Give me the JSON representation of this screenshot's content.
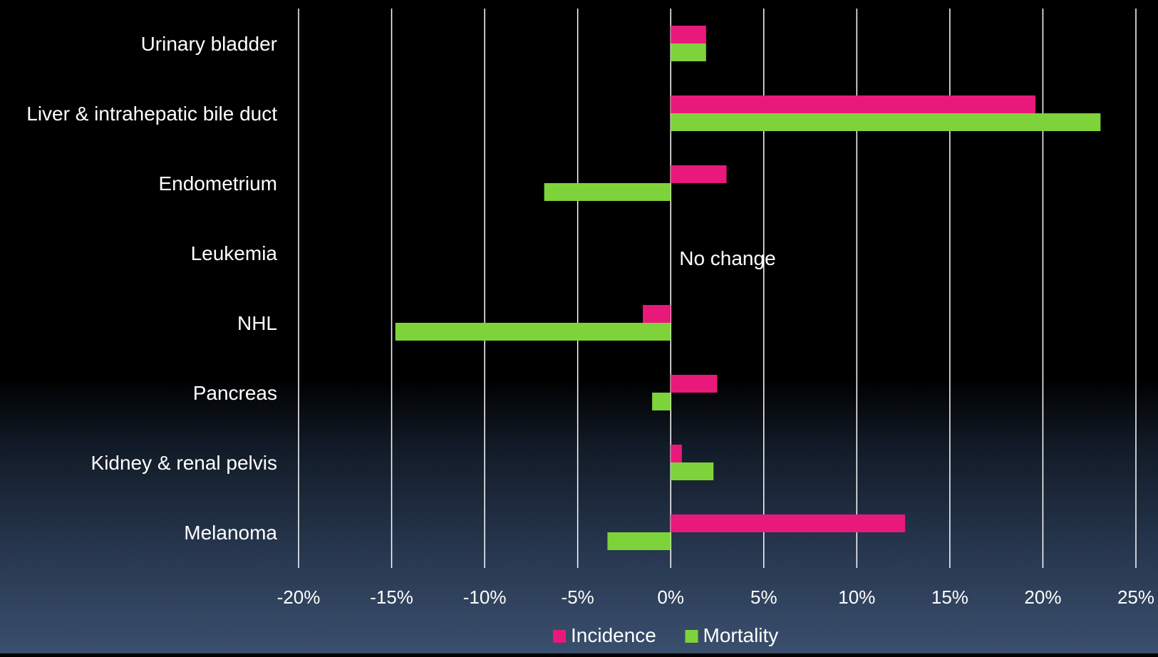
{
  "chart_data": {
    "type": "bar",
    "orientation": "horizontal",
    "categories": [
      "Urinary bladder",
      "Liver & intrahepatic bile duct",
      "Endometrium",
      "Leukemia",
      "NHL",
      "Pancreas",
      "Kidney & renal pelvis",
      "Melanoma"
    ],
    "series": [
      {
        "name": "Incidence",
        "color": "#e8197a",
        "values": [
          1.9,
          19.6,
          3.0,
          null,
          -1.5,
          2.5,
          0.6,
          12.6
        ]
      },
      {
        "name": "Mortality",
        "color": "#7fd33a",
        "values": [
          1.9,
          23.1,
          -6.8,
          null,
          -14.8,
          -1.0,
          2.3,
          -3.4
        ]
      }
    ],
    "xlim": [
      -20,
      25
    ],
    "xticks": [
      "-20%",
      "-15%",
      "-10%",
      "-5%",
      "0%",
      "5%",
      "10%",
      "15%",
      "20%",
      "25%"
    ],
    "grid": true,
    "legend_position": "bottom",
    "annotations": [
      {
        "text": "No change",
        "category": "Leukemia"
      }
    ]
  }
}
